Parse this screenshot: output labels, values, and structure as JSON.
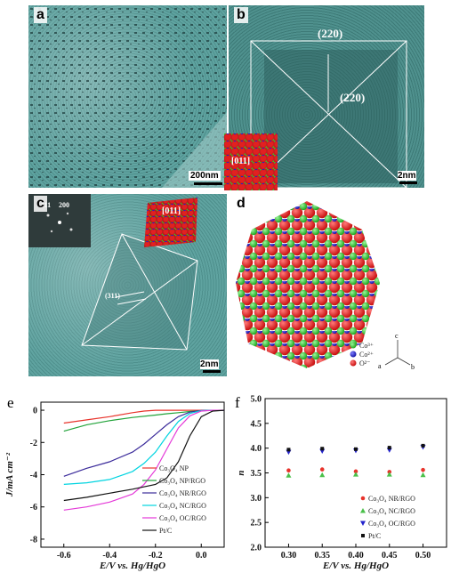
{
  "panels": {
    "a": {
      "label": "a",
      "scale": "200nm"
    },
    "b": {
      "label": "b",
      "scale": "2nm",
      "plane_top": "(220)",
      "plane_right": "(220)",
      "zone": "[011]"
    },
    "c": {
      "label": "c",
      "scale": "2nm",
      "fft_labels": [
        "111",
        "200"
      ],
      "zone": "[011]",
      "plane": "(311)"
    },
    "d": {
      "label": "d",
      "legend": [
        "Co³⁺",
        "Co²⁺",
        "O²⁻"
      ],
      "axes": [
        "c",
        "a",
        "b"
      ]
    },
    "e": {
      "label": "e"
    },
    "f": {
      "label": "f"
    }
  },
  "colors": {
    "co3": "#3ec43e",
    "co2": "#2a2ad0",
    "o": "#e01818",
    "tem": "#5a9d9a"
  },
  "chart_data": [
    {
      "type": "line",
      "panel": "e",
      "xlabel": "E/V vs. Hg/HgO",
      "ylabel": "J/mA cm⁻²",
      "xlim": [
        -0.7,
        0.1
      ],
      "ylim": [
        -8.5,
        0.5
      ],
      "xticks": [
        "-0.6",
        "-0.4",
        "-0.2",
        "0.0"
      ],
      "yticks": [
        "0",
        "-2",
        "-4",
        "-6",
        "-8"
      ],
      "series": [
        {
          "name": "Co₃O₄ NP",
          "color": "#e8332b",
          "x": [
            -0.6,
            -0.5,
            -0.4,
            -0.3,
            -0.25,
            -0.2,
            -0.15,
            -0.1,
            0.0,
            0.05,
            0.1
          ],
          "y": [
            -0.8,
            -0.6,
            -0.4,
            -0.15,
            -0.05,
            0.0,
            0.0,
            0.0,
            0.0,
            0.0,
            0.0
          ]
        },
        {
          "name": "Co₃O₄ NP/RGO",
          "color": "#22a33a",
          "x": [
            -0.6,
            -0.5,
            -0.4,
            -0.3,
            -0.2,
            -0.15,
            -0.1,
            -0.05,
            0.0,
            0.05,
            0.1
          ],
          "y": [
            -1.3,
            -0.9,
            -0.65,
            -0.45,
            -0.3,
            -0.22,
            -0.15,
            -0.08,
            -0.03,
            0.0,
            0.0
          ]
        },
        {
          "name": "Co₃O₄ NR/RGO",
          "color": "#3a2a9a",
          "x": [
            -0.6,
            -0.5,
            -0.4,
            -0.3,
            -0.25,
            -0.2,
            -0.15,
            -0.1,
            -0.05,
            0.0,
            0.05,
            0.1
          ],
          "y": [
            -4.1,
            -3.6,
            -3.2,
            -2.6,
            -2.1,
            -1.5,
            -0.9,
            -0.4,
            -0.12,
            -0.02,
            0.0,
            0.0
          ]
        },
        {
          "name": "Co₃O₄ NC/RGO",
          "color": "#00d4e0",
          "x": [
            -0.6,
            -0.5,
            -0.4,
            -0.3,
            -0.25,
            -0.2,
            -0.15,
            -0.1,
            -0.05,
            0.0,
            0.05,
            0.1
          ],
          "y": [
            -4.6,
            -4.5,
            -4.3,
            -3.8,
            -3.3,
            -2.6,
            -1.6,
            -0.7,
            -0.2,
            -0.03,
            0.0,
            0.0
          ]
        },
        {
          "name": "Co₃O₄ OC/RGO",
          "color": "#e43ad8",
          "x": [
            -0.6,
            -0.5,
            -0.4,
            -0.3,
            -0.25,
            -0.2,
            -0.15,
            -0.1,
            -0.05,
            0.0,
            0.05,
            0.1
          ],
          "y": [
            -6.2,
            -6.0,
            -5.7,
            -5.2,
            -4.6,
            -3.7,
            -2.4,
            -1.1,
            -0.35,
            -0.05,
            0.0,
            0.0
          ]
        },
        {
          "name": "Pt/C",
          "color": "#111111",
          "x": [
            -0.6,
            -0.5,
            -0.4,
            -0.3,
            -0.2,
            -0.15,
            -0.1,
            -0.05,
            0.0,
            0.05,
            0.1
          ],
          "y": [
            -5.6,
            -5.4,
            -5.15,
            -4.9,
            -4.6,
            -4.2,
            -3.2,
            -1.6,
            -0.4,
            -0.05,
            0.0
          ]
        }
      ]
    },
    {
      "type": "scatter",
      "panel": "f",
      "xlabel": "E/V vs. Hg/HgO",
      "ylabel": "n",
      "xlim": [
        0.265,
        0.535
      ],
      "ylim": [
        2.0,
        5.0
      ],
      "xticks": [
        "0.30",
        "0.35",
        "0.40",
        "0.45",
        "0.50"
      ],
      "yticks": [
        "2.0",
        "2.5",
        "3.0",
        "3.5",
        "4.0",
        "4.5",
        "5.0"
      ],
      "series": [
        {
          "name": "Co₃O₄ NR/RGO",
          "color": "#e8332b",
          "marker": "circle",
          "x": [
            0.3,
            0.35,
            0.4,
            0.45,
            0.5
          ],
          "y": [
            3.55,
            3.57,
            3.53,
            3.52,
            3.56
          ]
        },
        {
          "name": "Co₃O₄ NC/RGO",
          "color": "#4ac04a",
          "marker": "triangle-up",
          "x": [
            0.3,
            0.35,
            0.4,
            0.45,
            0.5
          ],
          "y": [
            3.45,
            3.46,
            3.47,
            3.47,
            3.46
          ]
        },
        {
          "name": "Co₃O₄ OC/RGO",
          "color": "#2222cc",
          "marker": "triangle-down",
          "x": [
            0.3,
            0.35,
            0.4,
            0.45,
            0.5
          ],
          "y": [
            3.92,
            3.94,
            3.95,
            3.96,
            4.02
          ]
        },
        {
          "name": "Pt/C",
          "color": "#111111",
          "marker": "square",
          "x": [
            0.3,
            0.35,
            0.4,
            0.45,
            0.5
          ],
          "y": [
            3.97,
            3.99,
            3.98,
            4.01,
            4.05
          ]
        }
      ]
    }
  ]
}
